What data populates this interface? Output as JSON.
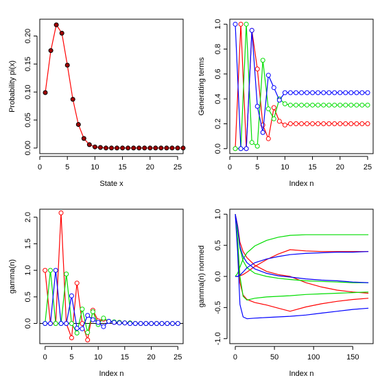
{
  "chart_data": [
    {
      "type": "line",
      "xlabel": "State x",
      "ylabel": "Probability pi(x)",
      "xlim": [
        0,
        26
      ],
      "ylim": [
        -0.01,
        0.23
      ],
      "xticks": [
        0,
        5,
        10,
        15,
        20,
        25
      ],
      "yticks": [
        0.0,
        0.05,
        0.1,
        0.15,
        0.2
      ],
      "series": [
        {
          "color": "#ff0000",
          "marker_fill": "#a00000",
          "marker": "filled-circle",
          "x": [
            1,
            2,
            3,
            4,
            5,
            6,
            7,
            8,
            9,
            10,
            11,
            12,
            13,
            14,
            15,
            16,
            17,
            18,
            19,
            20,
            21,
            22,
            23,
            24,
            25,
            26
          ],
          "values": [
            0.099,
            0.174,
            0.22,
            0.205,
            0.148,
            0.087,
            0.042,
            0.017,
            0.006,
            0.002,
            0.001,
            0,
            0,
            0,
            0,
            0,
            0,
            0,
            0,
            0,
            0,
            0,
            0,
            0,
            0,
            0
          ]
        }
      ]
    },
    {
      "type": "line",
      "xlabel": "Index n",
      "ylabel": "Generating terms",
      "xlim": [
        0,
        26
      ],
      "ylim": [
        -0.04,
        1.04
      ],
      "xticks": [
        0,
        5,
        10,
        15,
        20,
        25
      ],
      "yticks": [
        0.0,
        0.2,
        0.4,
        0.6,
        0.8,
        1.0
      ],
      "series": [
        {
          "color": "#ff0000",
          "marker": "open-circle",
          "x": [
            1,
            2,
            3,
            4,
            5,
            6,
            7,
            8,
            9,
            10,
            11,
            12,
            13,
            14,
            15,
            16,
            17,
            18,
            19,
            20,
            21,
            22,
            23,
            24,
            25
          ],
          "values": [
            0,
            1,
            0,
            0.95,
            0.64,
            0.19,
            0.08,
            0.33,
            0.22,
            0.19,
            0.2,
            0.2,
            0.2,
            0.2,
            0.2,
            0.2,
            0.2,
            0.2,
            0.2,
            0.2,
            0.2,
            0.2,
            0.2,
            0.2,
            0.2
          ]
        },
        {
          "color": "#00dd00",
          "marker": "open-circle",
          "x": [
            1,
            2,
            3,
            4,
            5,
            6,
            7,
            8,
            9,
            10,
            11,
            12,
            13,
            14,
            15,
            16,
            17,
            18,
            19,
            20,
            21,
            22,
            23,
            24,
            25
          ],
          "values": [
            0,
            0,
            1,
            0.05,
            0.02,
            0.71,
            0.32,
            0.24,
            0.4,
            0.36,
            0.35,
            0.35,
            0.35,
            0.35,
            0.35,
            0.35,
            0.35,
            0.35,
            0.35,
            0.35,
            0.35,
            0.35,
            0.35,
            0.35,
            0.35
          ]
        },
        {
          "color": "#0000ff",
          "marker": "open-circle",
          "x": [
            1,
            2,
            3,
            4,
            5,
            6,
            7,
            8,
            9,
            10,
            11,
            12,
            13,
            14,
            15,
            16,
            17,
            18,
            19,
            20,
            21,
            22,
            23,
            24,
            25
          ],
          "values": [
            1,
            0,
            0,
            0.95,
            0.34,
            0.13,
            0.59,
            0.49,
            0.39,
            0.45,
            0.45,
            0.45,
            0.45,
            0.45,
            0.45,
            0.45,
            0.45,
            0.45,
            0.45,
            0.45,
            0.45,
            0.45,
            0.45,
            0.45,
            0.45
          ]
        }
      ]
    },
    {
      "type": "line",
      "xlabel": "Index n",
      "ylabel": "gamma(n)",
      "xlim": [
        -1,
        26
      ],
      "ylim": [
        -0.38,
        2.15
      ],
      "xticks": [
        0,
        5,
        10,
        15,
        20,
        25
      ],
      "yticks": [
        0.0,
        0.5,
        1.0,
        1.5,
        2.0
      ],
      "hline": 0,
      "series": [
        {
          "color": "#ff0000",
          "marker": "open-circle",
          "x": [
            0,
            1,
            2,
            3,
            4,
            5,
            6,
            7,
            8,
            9,
            10,
            11,
            12,
            13,
            14,
            15,
            16,
            17,
            18,
            19,
            20,
            21,
            22,
            23,
            24,
            25
          ],
          "values": [
            1,
            0,
            0,
            2.08,
            0,
            -0.27,
            0.76,
            0,
            -0.31,
            0.25,
            0.05,
            0.08,
            0.04,
            0.02,
            0.02,
            0.01,
            0.01,
            0,
            0,
            0,
            0,
            0,
            0,
            0,
            0,
            0
          ]
        },
        {
          "color": "#00dd00",
          "marker": "open-circle",
          "x": [
            0,
            1,
            2,
            3,
            4,
            5,
            6,
            7,
            8,
            9,
            10,
            11,
            12,
            13,
            14,
            15,
            16,
            17,
            18,
            19,
            20,
            21,
            22,
            23,
            24,
            25
          ],
          "values": [
            0,
            1,
            0,
            0,
            0.93,
            0,
            -0.18,
            0.27,
            -0.17,
            0.22,
            -0.02,
            0.1,
            0.04,
            0.03,
            0.02,
            0.01,
            0.01,
            0,
            0,
            0,
            0,
            0,
            0,
            0,
            0,
            0
          ]
        },
        {
          "color": "#0000ff",
          "marker": "open-circle",
          "x": [
            0,
            1,
            2,
            3,
            4,
            5,
            6,
            7,
            8,
            9,
            10,
            11,
            12,
            13,
            14,
            15,
            16,
            17,
            18,
            19,
            20,
            21,
            22,
            23,
            24,
            25
          ],
          "values": [
            0,
            0,
            1,
            0,
            0,
            0.52,
            -0.09,
            -0.1,
            0.15,
            0.07,
            0.02,
            -0.06,
            0.04,
            0.02,
            0.01,
            0.01,
            0,
            0,
            0,
            0,
            0,
            0,
            0,
            0,
            0,
            0
          ]
        }
      ]
    },
    {
      "type": "line",
      "xlabel": "Index n",
      "ylabel": "gamma(n) normed",
      "xlim": [
        -7,
        176
      ],
      "ylim": [
        -1.08,
        1.08
      ],
      "xticks": [
        0,
        50,
        100,
        150
      ],
      "yticks": [
        -1.0,
        -0.5,
        0.0,
        0.5,
        1.0
      ],
      "series": [
        {
          "color": "#ff0000",
          "x": [
            0,
            3,
            6,
            10,
            15,
            25,
            40,
            55,
            70,
            90,
            110,
            130,
            150,
            170
          ],
          "values": [
            1,
            0.82,
            0.55,
            0.4,
            0.3,
            0.18,
            0.08,
            0.03,
            0.0,
            -0.1,
            -0.17,
            -0.22,
            -0.25,
            -0.27
          ]
        },
        {
          "color": "#ff0000",
          "x": [
            0,
            3,
            6,
            10,
            15,
            25,
            40,
            55,
            70,
            90,
            110,
            130,
            150,
            170
          ],
          "values": [
            0,
            0,
            0.01,
            0.03,
            0.07,
            0.16,
            0.27,
            0.36,
            0.43,
            0.41,
            0.4,
            0.4,
            0.4,
            0.4
          ]
        },
        {
          "color": "#ff0000",
          "x": [
            0,
            3,
            6,
            10,
            15,
            25,
            40,
            55,
            70,
            90,
            110,
            130,
            150,
            170
          ],
          "values": [
            1,
            0.5,
            -0.1,
            -0.3,
            -0.37,
            -0.42,
            -0.46,
            -0.51,
            -0.56,
            -0.49,
            -0.44,
            -0.4,
            -0.37,
            -0.35
          ]
        },
        {
          "color": "#00dd00",
          "x": [
            0,
            3,
            6,
            10,
            15,
            25,
            40,
            55,
            70,
            90,
            110,
            130,
            150,
            170
          ],
          "values": [
            0,
            0.05,
            0.15,
            0.28,
            0.38,
            0.49,
            0.58,
            0.63,
            0.66,
            0.67,
            0.67,
            0.67,
            0.67,
            0.67
          ]
        },
        {
          "color": "#00dd00",
          "x": [
            0,
            3,
            6,
            10,
            15,
            25,
            40,
            55,
            70,
            90,
            110,
            130,
            150,
            170
          ],
          "values": [
            1,
            0.75,
            0.45,
            0.25,
            0.14,
            0.05,
            0.0,
            -0.03,
            -0.05,
            -0.07,
            -0.08,
            -0.09,
            -0.1,
            -0.1
          ]
        },
        {
          "color": "#00dd00",
          "x": [
            0,
            3,
            6,
            10,
            15,
            25,
            40,
            55,
            70,
            90,
            110,
            130,
            150,
            170
          ],
          "values": [
            1,
            0.6,
            0.0,
            -0.32,
            -0.38,
            -0.35,
            -0.33,
            -0.32,
            -0.31,
            -0.29,
            -0.28,
            -0.27,
            -0.26,
            -0.25
          ]
        },
        {
          "color": "#0000ff",
          "x": [
            0,
            3,
            6,
            10,
            15,
            25,
            40,
            55,
            70,
            90,
            110,
            130,
            150,
            170
          ],
          "values": [
            1,
            0.8,
            0.48,
            0.32,
            0.22,
            0.12,
            0.05,
            0.01,
            -0.01,
            -0.04,
            -0.06,
            -0.07,
            -0.09,
            -0.1
          ]
        },
        {
          "color": "#0000ff",
          "x": [
            0,
            3,
            6,
            10,
            15,
            25,
            40,
            55,
            70,
            90,
            110,
            130,
            150,
            170
          ],
          "values": [
            0,
            0,
            0.02,
            0.07,
            0.14,
            0.22,
            0.28,
            0.32,
            0.35,
            0.37,
            0.38,
            0.39,
            0.39,
            0.4
          ]
        },
        {
          "color": "#0000ff",
          "x": [
            0,
            3,
            6,
            10,
            15,
            25,
            40,
            55,
            70,
            90,
            110,
            130,
            150,
            170
          ],
          "values": [
            1,
            0.4,
            -0.45,
            -0.65,
            -0.68,
            -0.67,
            -0.66,
            -0.65,
            -0.64,
            -0.62,
            -0.59,
            -0.56,
            -0.53,
            -0.51
          ]
        }
      ]
    }
  ]
}
